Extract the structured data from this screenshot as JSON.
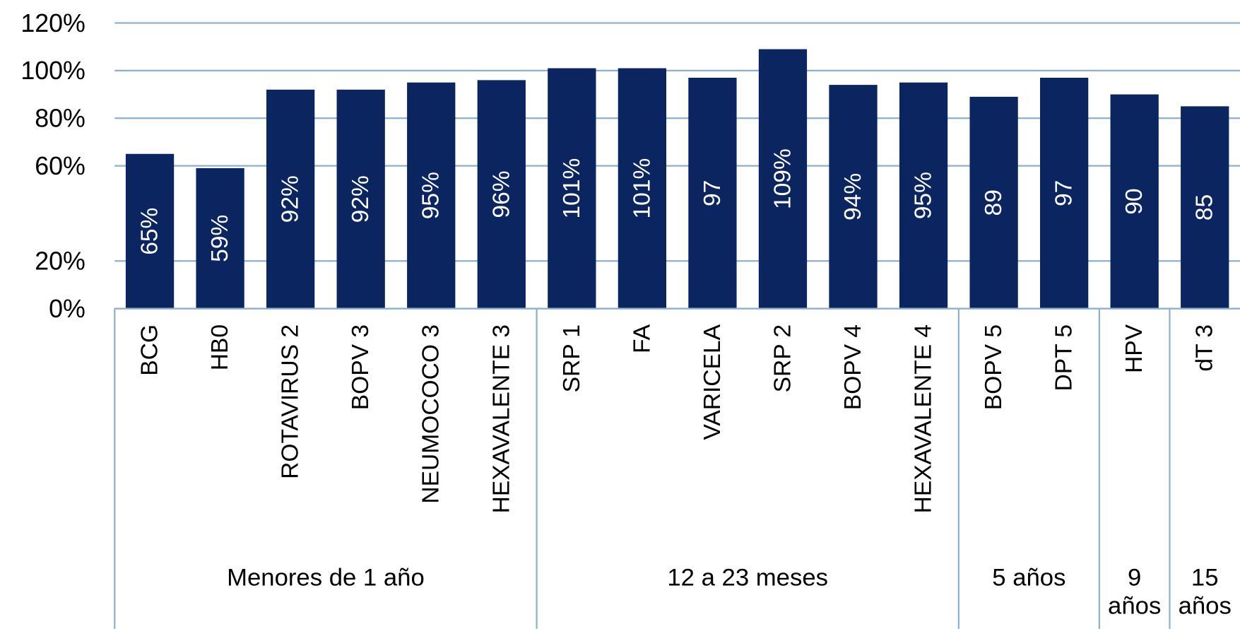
{
  "chart_data": {
    "type": "bar",
    "categories": [
      "BCG",
      "HB0",
      "ROTAVIRUS 2",
      "BOPV 3",
      "NEUMOCOCO 3",
      "HEXAVALENTE 3",
      "SRP 1",
      "FA",
      "VARICELA",
      "SRP 2",
      "BOPV 4",
      "HEXAVALENTE 4",
      "BOPV 5",
      "DPT 5",
      "HPV",
      "dT 3"
    ],
    "values": [
      65,
      59,
      92,
      92,
      95,
      96,
      101,
      101,
      97,
      109,
      94,
      95,
      89,
      97,
      90,
      85
    ],
    "value_labels": [
      "65%",
      "59%",
      "92%",
      "92%",
      "95%",
      "96%",
      "101%",
      "101%",
      "97",
      "109%",
      "94%",
      "95%",
      "89",
      "97",
      "90",
      "85"
    ],
    "groups": [
      {
        "label": "Menores de 1 año",
        "size": 6
      },
      {
        "label": "12 a 23 meses",
        "size": 6
      },
      {
        "label": "5 años",
        "size": 2
      },
      {
        "label": "9 años",
        "size": 1
      },
      {
        "label": "15 años",
        "size": 1
      }
    ],
    "color": "#0b2561",
    "ylim": [
      0,
      120
    ],
    "yticks": [
      {
        "value": 0,
        "label": "0%"
      },
      {
        "value": 20,
        "label": "20%"
      },
      {
        "value": 60,
        "label": "60%"
      },
      {
        "value": 80,
        "label": "80%"
      },
      {
        "value": 100,
        "label": "100%"
      },
      {
        "value": 120,
        "label": "120%"
      }
    ],
    "grid": true
  }
}
